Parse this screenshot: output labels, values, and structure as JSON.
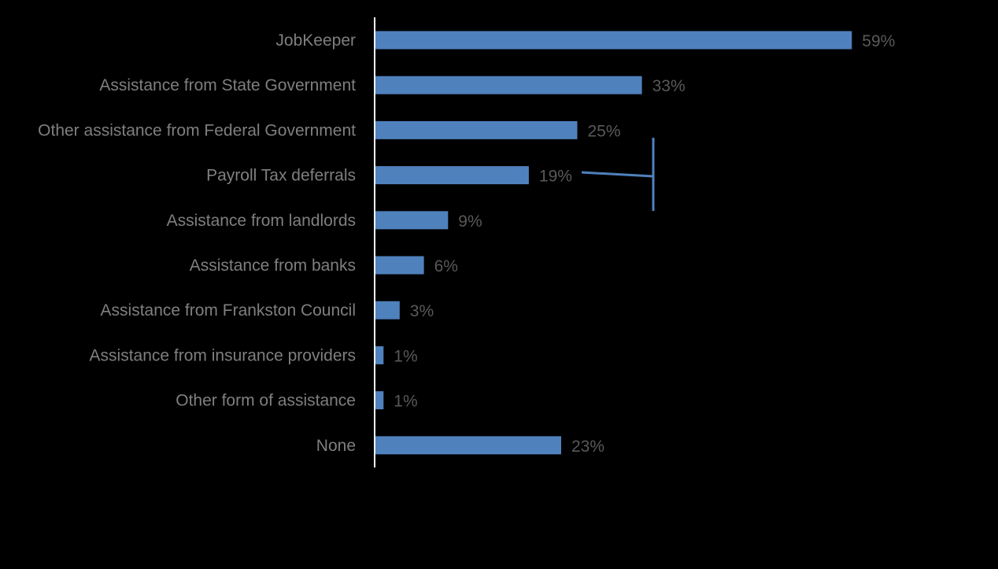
{
  "chart_data": {
    "type": "bar",
    "orientation": "horizontal",
    "categories": [
      "JobKeeper",
      "Assistance from State Government",
      "Other assistance from Federal Government",
      "Payroll Tax deferrals",
      "Assistance from landlords",
      "Assistance from banks",
      "Assistance from Frankston Council",
      "Assistance from insurance providers",
      "Other form of assistance",
      "None"
    ],
    "values": [
      59,
      33,
      25,
      19,
      9,
      6,
      3,
      1,
      1,
      23
    ],
    "value_labels": [
      "59%",
      "33%",
      "25%",
      "19%",
      "9%",
      "6%",
      "3%",
      "1%",
      "1%",
      "23%"
    ],
    "unit": "%",
    "title": "",
    "xlabel": "",
    "ylabel": "",
    "xlim": [
      0,
      77
    ],
    "grid": false,
    "legend": "none",
    "colors": {
      "background": "#000000",
      "bar": "#4f81bd",
      "axis": "#ffffff",
      "category_text": "#7f7f7f",
      "value_text": "#595959",
      "bracket": "#4f81bd"
    }
  }
}
